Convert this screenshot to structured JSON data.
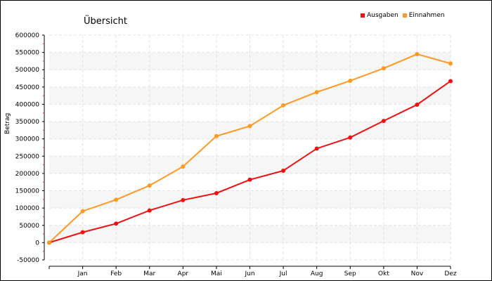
{
  "chart_data": {
    "type": "line",
    "title": "Übersicht",
    "xlabel": "",
    "ylabel": "Betrag",
    "categories": [
      "",
      "Jan",
      "Feb",
      "Mar",
      "Apr",
      "Mai",
      "Jun",
      "Jul",
      "Aug",
      "Sep",
      "Okt",
      "Nov",
      "Dez"
    ],
    "series": [
      {
        "name": "Ausgaben",
        "color": "#ee1111",
        "values": [
          0,
          30000,
          55000,
          93000,
          123000,
          143000,
          182000,
          208000,
          272000,
          304000,
          352000,
          399000,
          467000
        ]
      },
      {
        "name": "Einnahmen",
        "color": "#ff9922",
        "values": [
          0,
          91000,
          124000,
          165000,
          220000,
          308000,
          337000,
          397000,
          435000,
          468000,
          504000,
          545000,
          518000
        ]
      }
    ],
    "ylim": [
      -50000,
      600000
    ],
    "yticks": [
      -50000,
      0,
      50000,
      100000,
      150000,
      200000,
      250000,
      300000,
      350000,
      400000,
      450000,
      500000,
      550000,
      600000
    ],
    "grid": true,
    "legend": "top-right"
  }
}
